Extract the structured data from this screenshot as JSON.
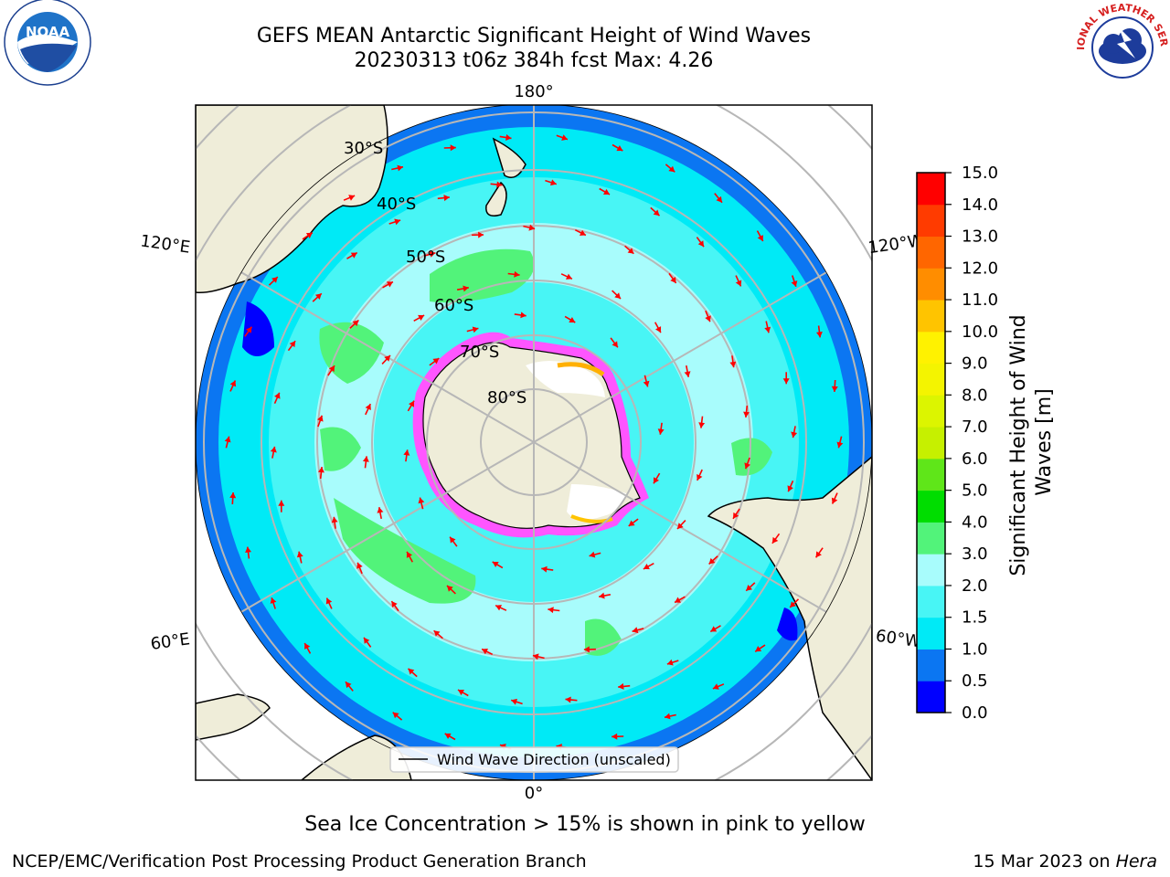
{
  "header": {
    "title_line1": "GEFS MEAN Antarctic Significant Height of Wind Waves",
    "title_line2": "20230313 t06z 384h fcst   Max: 4.26"
  },
  "map": {
    "projection": "south polar stereographic",
    "longitude_labels": {
      "top": "180°",
      "bottom": "0°",
      "left_upper": "120°E",
      "left_lower": "60°E",
      "right_upper": "120°W",
      "right_lower": "60°W"
    },
    "latitude_labels": [
      "30°S",
      "40°S",
      "50°S",
      "60°S",
      "70°S",
      "80°S"
    ],
    "legend_label": "Wind Wave Direction (unscaled)",
    "arrow_color": "#ff0000",
    "land_color": "#efedd9",
    "grid_color": "#b7b7b7"
  },
  "colorbar": {
    "label": "Significant Height of Wind Waves [m]",
    "ticks": [
      "15.0",
      "14.0",
      "13.0",
      "12.0",
      "11.0",
      "10.0",
      "9.0",
      "8.0",
      "7.0",
      "6.0",
      "5.0",
      "4.0",
      "3.0",
      "2.0",
      "1.5",
      "1.0",
      "0.5",
      "0.0"
    ],
    "colors_bottom_to_top": [
      "#0000ff",
      "#0b76f2",
      "#00eaf6",
      "#48f5f5",
      "#a8fcfc",
      "#52f37a",
      "#00dd00",
      "#5fe619",
      "#c6f000",
      "#dcf500",
      "#f4f400",
      "#fff200",
      "#ffc400",
      "#ff8d00",
      "#ff6600",
      "#ff3b00",
      "#ff0000"
    ]
  },
  "chart_data": {
    "type": "heatmap",
    "title": "GEFS MEAN Antarctic Significant Height of Wind Waves",
    "subtitle": "20230313 t06z 384h fcst   Max: 4.26",
    "colorbar_label": "Significant Height of Wind Waves [m]",
    "levels": [
      0.0,
      0.5,
      1.0,
      1.5,
      2.0,
      3.0,
      4.0,
      5.0,
      6.0,
      7.0,
      8.0,
      9.0,
      10.0,
      11.0,
      12.0,
      13.0,
      14.0,
      15.0
    ],
    "max": 4.26
  },
  "footer": {
    "sea_ice_note": "Sea Ice Concentration > 15% is shown in pink to yellow",
    "branch": "NCEP/EMC/Verification Post Processing Product Generation Branch",
    "date": "15 Mar 2023 on ",
    "machine": "Hera"
  },
  "logos": {
    "noaa_text": "NOAA",
    "nws_ring_text": "NATIONAL WEATHER SERVICE"
  }
}
